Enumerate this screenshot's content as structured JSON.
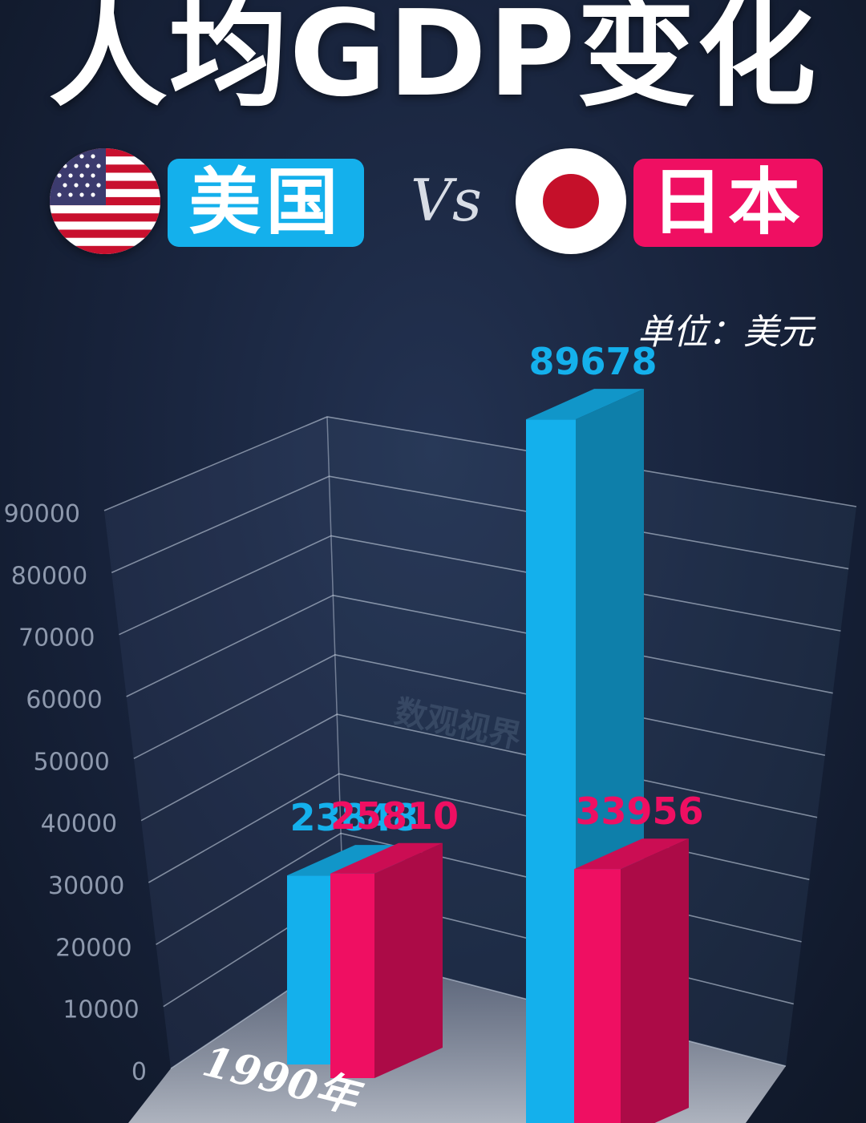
{
  "header": {
    "title": "人均GDP变化",
    "vs": "Vs",
    "unit": "单位：美元"
  },
  "legend": [
    {
      "name": "美国",
      "flag": "us-flag-icon",
      "color": "#14b0ec"
    },
    {
      "name": "日本",
      "flag": "japan-flag-icon",
      "color": "#ef0f62"
    }
  ],
  "watermark": "数观视界",
  "chart_data": {
    "type": "bar",
    "title": "人均GDP变化",
    "ylabel": "",
    "xlabel": "",
    "ylim": [
      0,
      90000
    ],
    "yticks": [
      "0",
      "10000",
      "20000",
      "30000",
      "40000",
      "50000",
      "60000",
      "70000",
      "80000",
      "90000"
    ],
    "categories": [
      "1990年",
      ""
    ],
    "series": [
      {
        "name": "美国",
        "color": "#14b0ec",
        "values": [
          23848,
          89678
        ],
        "labels": [
          "23848",
          "89678"
        ]
      },
      {
        "name": "日本",
        "color": "#ef0f62",
        "values": [
          25810,
          33956
        ],
        "labels": [
          "25810",
          "33956"
        ]
      }
    ]
  }
}
